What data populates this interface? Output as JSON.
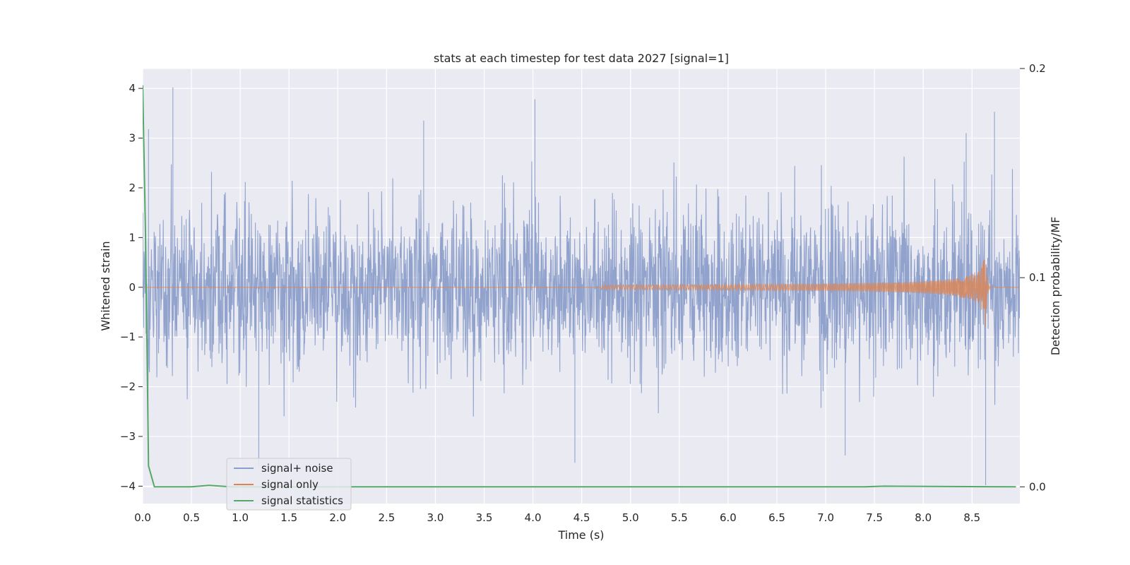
{
  "chart_data": {
    "type": "line",
    "title": "stats at each timestep for test data 2027 [signal=1]",
    "xlabel": "Time (s)",
    "ylabel": "Whitened strain",
    "ylabel_right": "Detection probability/MF",
    "xlim": [
      0.0,
      8.99
    ],
    "ylim": [
      -4.35,
      4.4
    ],
    "ylim_right": [
      -0.008,
      0.2
    ],
    "xticks": [
      0.0,
      0.5,
      1.0,
      1.5,
      2.0,
      2.5,
      3.0,
      3.5,
      4.0,
      4.5,
      5.0,
      5.5,
      6.0,
      6.5,
      7.0,
      7.5,
      8.0,
      8.5
    ],
    "xtick_labels": [
      "0.0",
      "0.5",
      "1.0",
      "1.5",
      "2.0",
      "2.5",
      "3.0",
      "3.5",
      "4.0",
      "4.5",
      "5.0",
      "5.5",
      "6.0",
      "6.5",
      "7.0",
      "7.5",
      "8.0",
      "8.5"
    ],
    "yticks": [
      -4,
      -3,
      -2,
      -1,
      0,
      1,
      2,
      3,
      4
    ],
    "ytick_labels": [
      "−4",
      "−3",
      "−2",
      "−1",
      "0",
      "1",
      "2",
      "3",
      "4"
    ],
    "yticks_right": [
      0.0,
      0.1,
      0.2
    ],
    "ytick_labels_right": [
      "0.0",
      "0.1",
      "0.2"
    ],
    "grid": true,
    "legend_position": "lower-left",
    "series": [
      {
        "name": "signal+ noise",
        "axis": "left",
        "color": "#8c9fca",
        "description_values": {
          "typical_range": [
            -2.0,
            2.0
          ],
          "peaks": [
            [
              0.31,
              4.02
            ],
            [
              0.06,
              3.18
            ],
            [
              2.88,
              3.35
            ],
            [
              4.02,
              3.78
            ],
            [
              8.73,
              3.53
            ],
            [
              8.44,
              3.1
            ],
            [
              8.64,
              -3.98
            ],
            [
              1.19,
              -3.6
            ],
            [
              4.43,
              -3.53
            ],
            [
              7.2,
              -3.38
            ]
          ]
        },
        "envelope": {
          "x": [
            0.0,
            0.5,
            1.0,
            1.5,
            2.0,
            2.5,
            3.0,
            3.5,
            4.0,
            4.5,
            5.0,
            5.5,
            6.0,
            6.5,
            7.0,
            7.5,
            8.0,
            8.5,
            8.99
          ],
          "upper": [
            3.2,
            2.6,
            2.4,
            2.5,
            2.6,
            2.6,
            3.35,
            2.6,
            3.78,
            2.6,
            2.6,
            2.5,
            2.8,
            2.6,
            2.5,
            3.1,
            3.3,
            3.1,
            3.53
          ],
          "lower": [
            -3.0,
            -2.7,
            -3.3,
            -2.8,
            -3.0,
            -3.3,
            -2.6,
            -2.6,
            -2.9,
            -3.5,
            -3.2,
            -2.7,
            -2.6,
            -2.6,
            -3.4,
            -2.7,
            -3.0,
            -3.98,
            -2.5
          ]
        }
      },
      {
        "name": "signal only",
        "axis": "left",
        "color": "#dd8452",
        "chirp": {
          "start_time": 4.7,
          "merger_time": 8.64,
          "peak_amplitude": 0.85,
          "end_time": 8.99
        }
      },
      {
        "name": "signal statistics",
        "axis": "right",
        "color": "#55a868",
        "x": [
          0.0,
          0.03,
          0.06,
          0.12,
          0.5,
          0.68,
          0.9,
          2.0,
          4.0,
          6.0,
          7.4,
          7.6,
          8.95
        ],
        "y": [
          0.192,
          0.12,
          0.01,
          0.0,
          0.0,
          0.0007,
          0.0,
          0.0,
          0.0,
          0.0,
          0.0,
          0.0003,
          0.0
        ]
      }
    ]
  }
}
